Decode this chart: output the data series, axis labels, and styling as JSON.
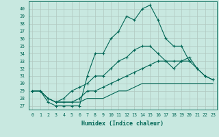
{
  "xlabel": "Humidex (Indice chaleur)",
  "xlim": [
    -0.5,
    23.5
  ],
  "ylim": [
    26.5,
    41.0
  ],
  "yticks": [
    27,
    28,
    29,
    30,
    31,
    32,
    33,
    34,
    35,
    36,
    37,
    38,
    39,
    40
  ],
  "xticks": [
    0,
    1,
    2,
    3,
    4,
    5,
    6,
    7,
    8,
    9,
    10,
    11,
    12,
    13,
    14,
    15,
    16,
    17,
    18,
    19,
    20,
    21,
    22,
    23
  ],
  "background_color": "#c8e8e0",
  "grid_color": "#b0c8c0",
  "line_color": "#006655",
  "lines": [
    {
      "x": [
        0,
        1,
        2,
        3,
        4,
        5,
        6,
        7,
        8,
        9,
        10,
        11,
        12,
        13,
        14,
        15,
        16,
        17,
        18,
        19,
        20
      ],
      "y": [
        29,
        29,
        27.5,
        27,
        27,
        27,
        27,
        31,
        34,
        34,
        36,
        37,
        39,
        38.5,
        40,
        40.5,
        38.5,
        36,
        35,
        35,
        33
      ],
      "marker": "+"
    },
    {
      "x": [
        0,
        1,
        2,
        3,
        4,
        5,
        6,
        7,
        8,
        9,
        10,
        11,
        12,
        13,
        14,
        15,
        16,
        17,
        18,
        19,
        20,
        21,
        22,
        23
      ],
      "y": [
        29,
        29,
        28,
        27.5,
        28,
        29,
        29.5,
        30,
        31,
        31,
        32,
        33,
        33.5,
        34.5,
        35,
        35,
        34,
        33,
        32,
        33,
        33.5,
        32,
        31,
        30.5
      ],
      "marker": "+"
    },
    {
      "x": [
        0,
        1,
        2,
        3,
        4,
        5,
        6,
        7,
        8,
        9,
        10,
        11,
        12,
        13,
        14,
        15,
        16,
        17,
        18,
        19,
        20,
        21,
        22,
        23
      ],
      "y": [
        29,
        29,
        28,
        27.5,
        27.5,
        27.5,
        28,
        29,
        29,
        29.5,
        30,
        30.5,
        31,
        31.5,
        32,
        32.5,
        33,
        33,
        33,
        33,
        33,
        32,
        31,
        30.5
      ],
      "marker": "+"
    },
    {
      "x": [
        0,
        1,
        2,
        3,
        4,
        5,
        6,
        7,
        8,
        9,
        10,
        11,
        12,
        13,
        14,
        15,
        16,
        17,
        18,
        19,
        20,
        21,
        22,
        23
      ],
      "y": [
        29,
        29,
        28,
        27.5,
        27.5,
        27.5,
        27.5,
        28,
        28,
        28,
        28.5,
        29,
        29,
        29.5,
        30,
        30,
        30,
        30,
        30,
        30,
        30,
        30,
        30,
        30
      ],
      "marker": null
    }
  ]
}
